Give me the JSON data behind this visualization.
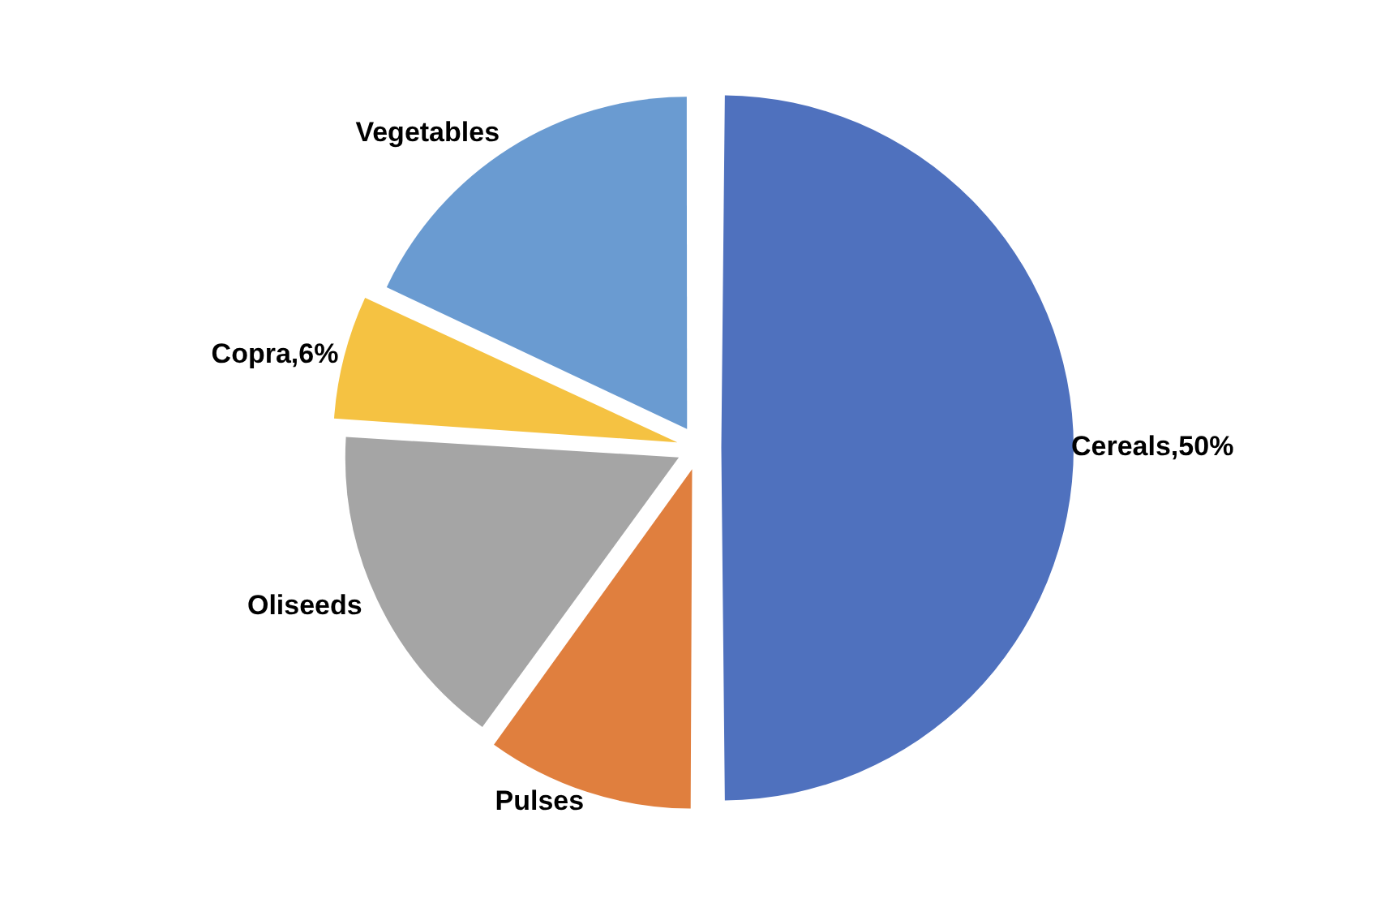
{
  "chart_data": {
    "type": "pie",
    "categories": [
      "Cereals",
      "Pulses",
      "Oliseeds",
      "Copra",
      "Vegetables"
    ],
    "values": [
      50,
      10,
      16,
      6,
      18
    ],
    "colors": [
      "#4f71be",
      "#e07f3e",
      "#a5a5a5",
      "#f5c242",
      "#6a9bd1"
    ],
    "value_labels": [
      "50%",
      null,
      null,
      "6%",
      null
    ],
    "legend": false
  }
}
